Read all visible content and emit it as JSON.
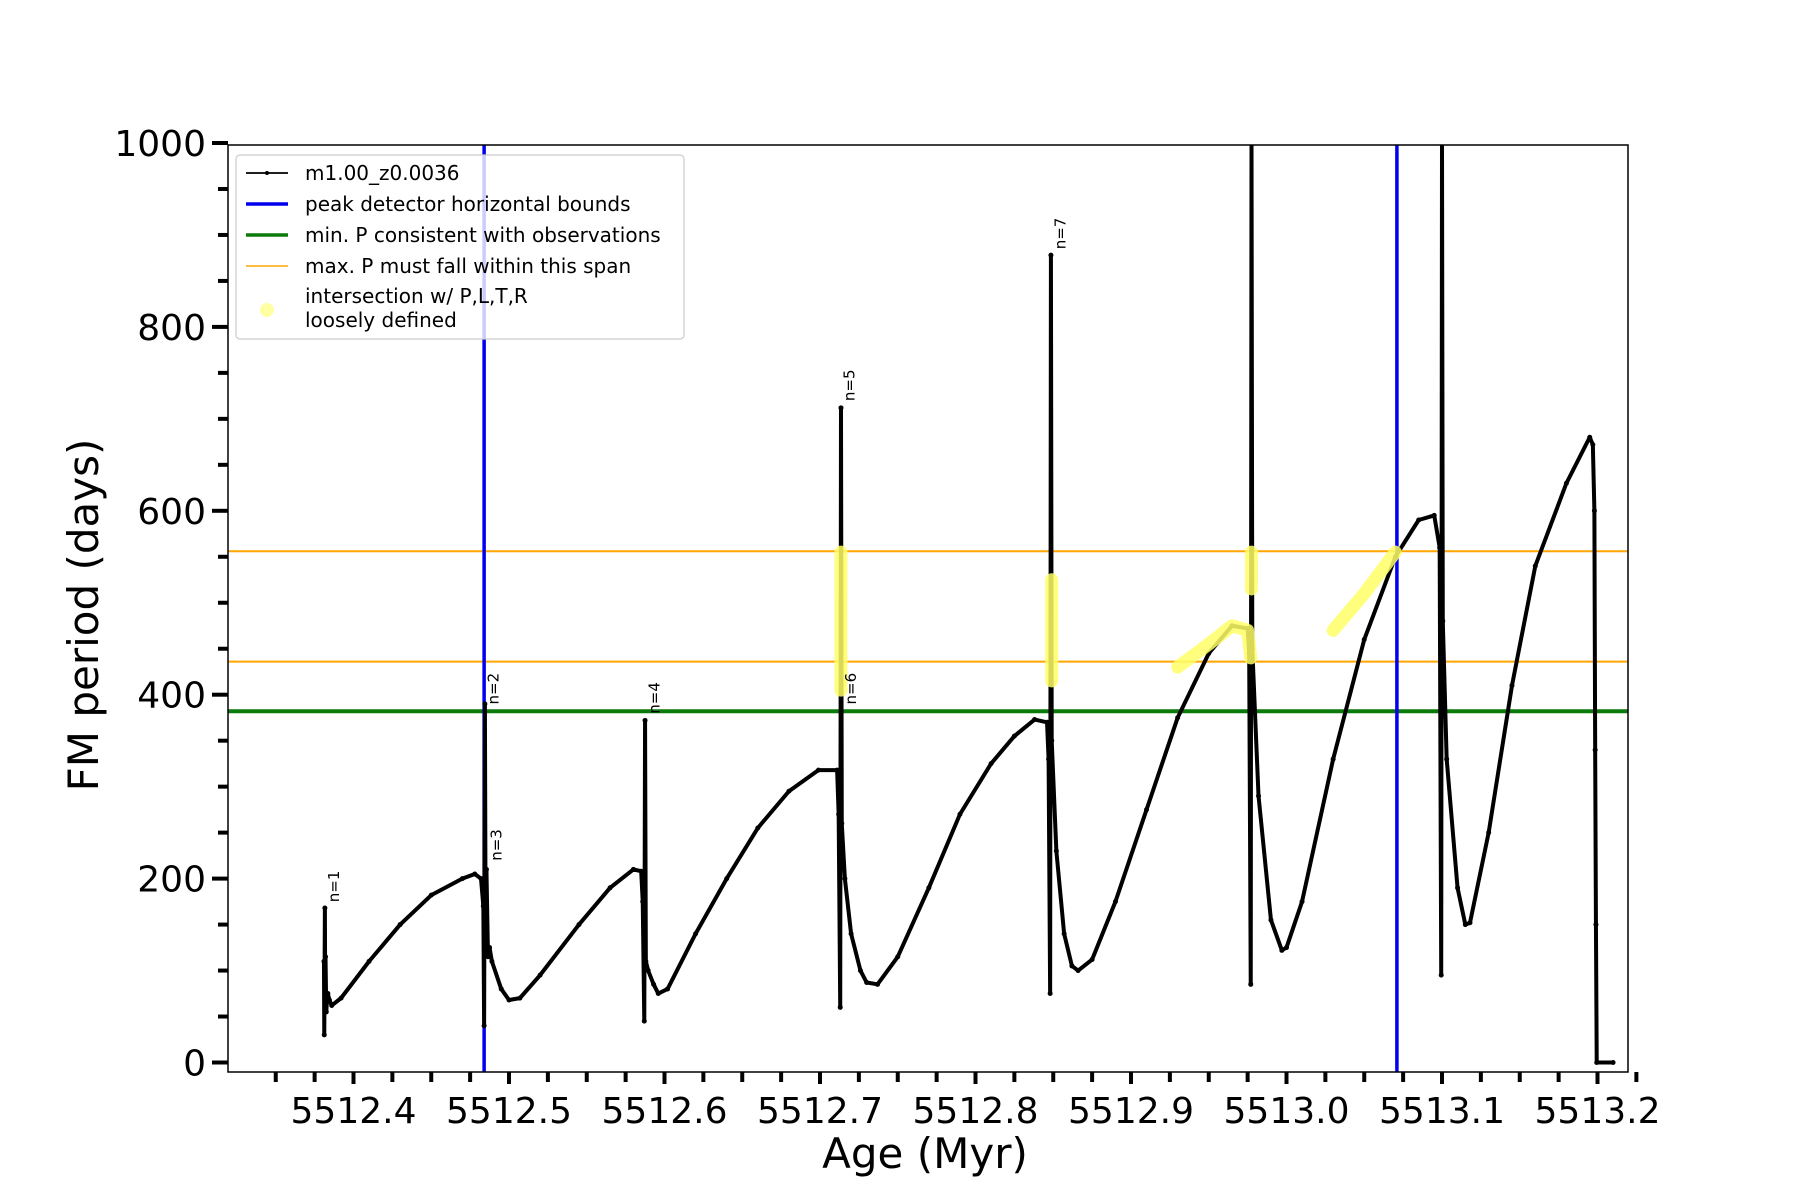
{
  "chart_data": {
    "type": "line",
    "title": "",
    "xlabel": "Age (Myr)",
    "ylabel": "FM period (days)",
    "xlim": [
      5512.34,
      5513.23
    ],
    "ylim": [
      -10,
      1000
    ],
    "xticks": [
      5512.4,
      5512.5,
      5512.6,
      5512.7,
      5512.8,
      5512.9,
      5513.0,
      5513.1,
      5513.2
    ],
    "xtick_labels": [
      "5512.4",
      "5512.5",
      "5512.6",
      "5512.7",
      "5512.8",
      "5512.9",
      "5513.0",
      "5513.1",
      "5513.2"
    ],
    "yticks": [
      0,
      200,
      400,
      600,
      800,
      1000
    ],
    "ytick_labels": [
      "0",
      "200",
      "400",
      "600",
      "800",
      "1000"
    ],
    "grid": false,
    "legend_position": "top-left",
    "legend": [
      {
        "label": "m1.00_z0.0036",
        "style": "line-marker",
        "color": "#000000"
      },
      {
        "label": "peak detector horizontal bounds",
        "style": "line",
        "color": "#0000ee"
      },
      {
        "label": "min. P consistent with observations",
        "style": "line",
        "color": "#0a7a0a"
      },
      {
        "label": "max. P must fall within this span",
        "style": "thin-line",
        "color": "#ffa500"
      },
      {
        "label": "intersection w/ P,L,T,R\nloosely defined",
        "style": "dot",
        "color": "#ffff66"
      }
    ],
    "series": [
      {
        "name": "m1.00_z0.0036",
        "color": "#000000",
        "points": [
          [
            5512.381,
            110
          ],
          [
            5512.3812,
            30
          ],
          [
            5512.3816,
            168
          ],
          [
            5512.3818,
            70
          ],
          [
            5512.382,
            115
          ],
          [
            5512.3825,
            55
          ],
          [
            5512.383,
            70
          ],
          [
            5512.3835,
            75
          ],
          [
            5512.3845,
            68
          ],
          [
            5512.386,
            62
          ],
          [
            5512.392,
            70
          ],
          [
            5512.41,
            110
          ],
          [
            5512.43,
            150
          ],
          [
            5512.45,
            182
          ],
          [
            5512.47,
            200
          ],
          [
            5512.478,
            205
          ],
          [
            5512.482,
            200
          ],
          [
            5512.4835,
            170
          ],
          [
            5512.484,
            40
          ],
          [
            5512.4845,
            390
          ],
          [
            5512.485,
            120
          ],
          [
            5512.4855,
            210
          ],
          [
            5512.4865,
            115
          ],
          [
            5512.4875,
            125
          ],
          [
            5512.489,
            110
          ],
          [
            5512.495,
            80
          ],
          [
            5512.5,
            68
          ],
          [
            5512.507,
            70
          ],
          [
            5512.52,
            95
          ],
          [
            5512.545,
            150
          ],
          [
            5512.565,
            190
          ],
          [
            5512.58,
            210
          ],
          [
            5512.585,
            208
          ],
          [
            5512.586,
            175
          ],
          [
            5512.587,
            45
          ],
          [
            5512.5875,
            372
          ],
          [
            5512.588,
            110
          ],
          [
            5512.5895,
            100
          ],
          [
            5512.593,
            85
          ],
          [
            5512.596,
            75
          ],
          [
            5512.602,
            80
          ],
          [
            5512.62,
            140
          ],
          [
            5512.64,
            200
          ],
          [
            5512.66,
            255
          ],
          [
            5512.68,
            295
          ],
          [
            5512.699,
            318
          ],
          [
            5512.711,
            318
          ],
          [
            5512.712,
            270
          ],
          [
            5512.713,
            60
          ],
          [
            5512.7135,
            712
          ],
          [
            5512.714,
            260
          ],
          [
            5512.716,
            200
          ],
          [
            5512.72,
            140
          ],
          [
            5512.726,
            100
          ],
          [
            5512.73,
            87
          ],
          [
            5512.737,
            85
          ],
          [
            5512.75,
            115
          ],
          [
            5512.77,
            190
          ],
          [
            5512.79,
            270
          ],
          [
            5512.81,
            325
          ],
          [
            5512.825,
            355
          ],
          [
            5512.838,
            373
          ],
          [
            5512.846,
            370
          ],
          [
            5512.847,
            330
          ],
          [
            5512.848,
            75
          ],
          [
            5512.8485,
            878
          ],
          [
            5512.849,
            350
          ],
          [
            5512.852,
            230
          ],
          [
            5512.857,
            140
          ],
          [
            5512.862,
            105
          ],
          [
            5512.866,
            100
          ],
          [
            5512.875,
            112
          ],
          [
            5512.89,
            175
          ],
          [
            5512.91,
            275
          ],
          [
            5512.93,
            375
          ],
          [
            5512.95,
            445
          ],
          [
            5512.965,
            475
          ],
          [
            5512.975,
            472
          ],
          [
            5512.976,
            445
          ],
          [
            5512.977,
            85
          ],
          [
            5512.9775,
            1000
          ],
          [
            5512.978,
            450
          ],
          [
            5512.982,
            290
          ],
          [
            5512.99,
            155
          ],
          [
            5512.997,
            122
          ],
          [
            5513.0,
            125
          ],
          [
            5513.01,
            175
          ],
          [
            5513.03,
            330
          ],
          [
            5513.05,
            460
          ],
          [
            5513.07,
            550
          ],
          [
            5513.085,
            590
          ],
          [
            5513.095,
            595
          ],
          [
            5513.0985,
            560
          ],
          [
            5513.0995,
            95
          ],
          [
            5513.1,
            1000
          ],
          [
            5513.1005,
            480
          ],
          [
            5513.103,
            330
          ],
          [
            5513.11,
            190
          ],
          [
            5513.115,
            150
          ],
          [
            5513.118,
            152
          ],
          [
            5513.13,
            250
          ],
          [
            5513.145,
            410
          ],
          [
            5513.16,
            540
          ],
          [
            5513.18,
            630
          ],
          [
            5513.195,
            680
          ],
          [
            5513.197,
            672
          ],
          [
            5513.198,
            600
          ],
          [
            5513.1985,
            340
          ],
          [
            5513.199,
            150
          ],
          [
            5513.1995,
            0
          ],
          [
            5513.21,
            0
          ]
        ]
      },
      {
        "name": "intersection w/ P,L,T,R loosely defined",
        "color": "#ffff66",
        "segments": [
          [
            [
              5512.7135,
              405
            ],
            [
              5512.7135,
              555
            ]
          ],
          [
            [
              5512.849,
              415
            ],
            [
              5512.849,
              525
            ]
          ],
          [
            [
              5512.93,
              430
            ],
            [
              5512.95,
              455
            ],
            [
              5512.965,
              475
            ],
            [
              5512.975,
              470
            ],
            [
              5512.977,
              440
            ]
          ],
          [
            [
              5512.9775,
              515
            ],
            [
              5512.9775,
              555
            ]
          ],
          [
            [
              5513.03,
              470
            ],
            [
              5513.05,
              510
            ],
            [
              5513.07,
              555
            ]
          ]
        ]
      }
    ],
    "vlines": [
      5512.484,
      5513.071
    ],
    "hlines": [
      {
        "y": 382,
        "color": "#0a7a0a"
      },
      {
        "y": 436,
        "color": "#ffa500"
      },
      {
        "y": 556,
        "color": "#ffa500"
      }
    ],
    "annotations": [
      {
        "text": "n=1",
        "x": 5512.383,
        "y": 170
      },
      {
        "text": "n=2",
        "x": 5512.4855,
        "y": 385
      },
      {
        "text": "n=3",
        "x": 5512.4875,
        "y": 215
      },
      {
        "text": "n=4",
        "x": 5512.589,
        "y": 375
      },
      {
        "text": "n=5",
        "x": 5512.7145,
        "y": 715
      },
      {
        "text": "n=6",
        "x": 5512.7155,
        "y": 385
      },
      {
        "text": "n=7",
        "x": 5512.85,
        "y": 880
      }
    ]
  }
}
